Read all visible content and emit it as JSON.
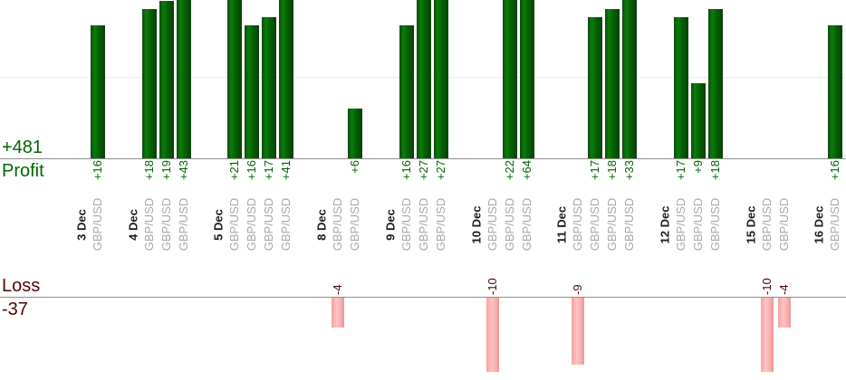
{
  "summary": {
    "profit_total": "+481",
    "profit_label": "Profit",
    "loss_label": "Loss",
    "loss_total": "-37"
  },
  "chart_data": {
    "type": "bar",
    "orientation": "vertical",
    "top_section_label": "Profit",
    "bottom_section_label": "Loss",
    "totals": {
      "profit": 481,
      "loss": -37
    },
    "instrument": "GBP/USD",
    "grid": "single faint horizontal gridline in profit area",
    "legend_position": "none",
    "days": [
      {
        "date": "3 Dec",
        "trades": [
          {
            "pair": "GBP/USD",
            "label": "+16",
            "value": 16
          }
        ]
      },
      {
        "date": "4 Dec",
        "trades": [
          {
            "pair": "GBP/USD",
            "label": "+18",
            "value": 18
          },
          {
            "pair": "GBP/USD",
            "label": "+19",
            "value": 19
          },
          {
            "pair": "GBP/USD",
            "label": "+43",
            "value": 43
          }
        ]
      },
      {
        "date": "5 Dec",
        "trades": [
          {
            "pair": "GBP/USD",
            "label": "+21",
            "value": 21
          },
          {
            "pair": "GBP/USD",
            "label": "+16",
            "value": 16
          },
          {
            "pair": "GBP/USD",
            "label": "+17",
            "value": 17
          },
          {
            "pair": "GBP/USD",
            "label": "+41",
            "value": 41
          }
        ]
      },
      {
        "date": "8 Dec",
        "trades": [
          {
            "pair": "GBP/USD",
            "label": "-4",
            "value": -4
          },
          {
            "pair": "GBP/USD",
            "label": "+6",
            "value": 6
          }
        ]
      },
      {
        "date": "9 Dec",
        "trades": [
          {
            "pair": "GBP/USD",
            "label": "+16",
            "value": 16
          },
          {
            "pair": "GBP/USD",
            "label": "+27",
            "value": 27
          },
          {
            "pair": "GBP/USD",
            "label": "+27",
            "value": 27
          }
        ]
      },
      {
        "date": "10 Dec",
        "trades": [
          {
            "pair": "GBP/USD",
            "label": "-10",
            "value": -10
          },
          {
            "pair": "GBP/USD",
            "label": "+22",
            "value": 22
          },
          {
            "pair": "GBP/USD",
            "label": "+64",
            "value": 64
          }
        ]
      },
      {
        "date": "11 Dec",
        "trades": [
          {
            "pair": "GBP/USD",
            "label": "-9",
            "value": -9
          },
          {
            "pair": "GBP/USD",
            "label": "+17",
            "value": 17
          },
          {
            "pair": "GBP/USD",
            "label": "+18",
            "value": 18
          },
          {
            "pair": "GBP/USD",
            "label": "+33",
            "value": 33
          }
        ]
      },
      {
        "date": "12 Dec",
        "trades": [
          {
            "pair": "GBP/USD",
            "label": "+17",
            "value": 17
          },
          {
            "pair": "GBP/USD",
            "label": "+9",
            "value": 9
          },
          {
            "pair": "GBP/USD",
            "label": "+18",
            "value": 18
          }
        ]
      },
      {
        "date": "15 Dec",
        "trades": [
          {
            "pair": "GBP/USD",
            "label": "-10",
            "value": -10
          },
          {
            "pair": "GBP/USD",
            "label": "-4",
            "value": -4
          }
        ]
      },
      {
        "date": "16 Dec",
        "trades": [
          {
            "pair": "GBP/USD",
            "label": "+16",
            "value": 16
          }
        ]
      }
    ],
    "colors": {
      "profit_text": "#006600",
      "loss_text": "#4d0606",
      "date_text": "#1c1c1c",
      "instrument_text": "#a8a8a8",
      "profit_bar": "#0a7d0a",
      "loss_bar": "#ffc2c2",
      "axis_line": "#8c8c8c",
      "gridline": "#ededed"
    }
  }
}
